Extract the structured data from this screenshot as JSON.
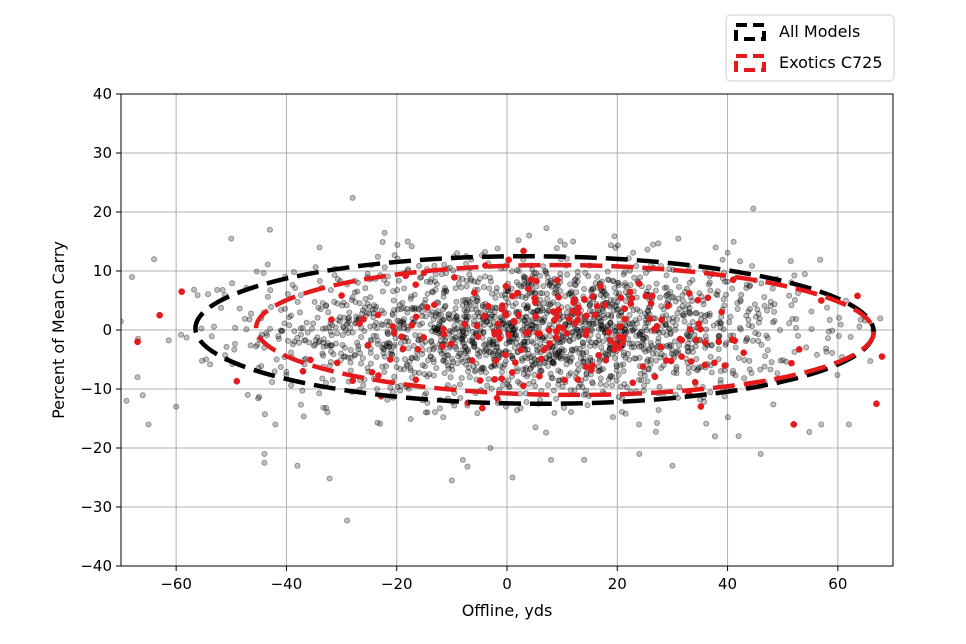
{
  "chart_data": {
    "type": "scatter",
    "xlabel": "Offline, yds",
    "ylabel": "Percent of Mean Carry",
    "xlim": [
      -70,
      70
    ],
    "ylim": [
      -40,
      40
    ],
    "xticks": [
      -60,
      -40,
      -20,
      0,
      20,
      40,
      60
    ],
    "yticks": [
      -40,
      -30,
      -20,
      -10,
      0,
      10,
      20,
      30,
      40
    ],
    "xtick_labels": [
      "−60",
      "−40",
      "−20",
      "0",
      "20",
      "40",
      "60"
    ],
    "ytick_labels": [
      "−40",
      "−30",
      "−20",
      "−10",
      "0",
      "10",
      "20",
      "30",
      "40"
    ],
    "grid": true,
    "legend_position": "top-right, outside plot",
    "series": [
      {
        "name": "All Models",
        "kind": "points",
        "color": "#000000",
        "opacity": 0.25,
        "approx_count": 2000,
        "distribution": {
          "x_mean": 5,
          "x_sd": 24,
          "y_mean": 0,
          "y_sd": 6
        },
        "outliers": [
          [
            -28,
            22.4
          ],
          [
            -29,
            -32.3
          ],
          [
            -44,
            -21
          ],
          [
            -44,
            -22.5
          ],
          [
            -38,
            -23
          ],
          [
            -42,
            -16
          ],
          [
            -47,
            -11
          ],
          [
            -60,
            -13
          ],
          [
            -10,
            -25.5
          ],
          [
            -8,
            -22
          ],
          [
            -3,
            -20
          ],
          [
            1,
            -25
          ],
          [
            8,
            -22
          ],
          [
            14,
            -22
          ],
          [
            24,
            -21
          ],
          [
            30,
            -23
          ],
          [
            42,
            -18
          ],
          [
            46,
            -21
          ],
          [
            57,
            -16
          ],
          [
            62,
            -16
          ],
          [
            4,
            16
          ],
          [
            12,
            15
          ],
          [
            -18,
            15
          ],
          [
            -34,
            14
          ],
          [
            -43,
            17
          ],
          [
            -50,
            15.5
          ],
          [
            -64,
            12
          ],
          [
            -68,
            9
          ],
          [
            -65,
            -16
          ],
          [
            -67,
            -8
          ],
          [
            -69,
            -12
          ]
        ]
      },
      {
        "name": "Exotics C725",
        "kind": "points",
        "color": "#e41a1c",
        "approx_count": 180,
        "distribution": {
          "x_mean": 10,
          "x_sd": 22,
          "y_mean": 0,
          "y_sd": 5
        },
        "outliers": [
          [
            -67,
            -2
          ],
          [
            -63,
            2.5
          ],
          [
            -59,
            6.5
          ],
          [
            -37,
            -7
          ],
          [
            67,
            -12.5
          ],
          [
            68,
            -4.5
          ],
          [
            57,
            5
          ],
          [
            52,
            -16
          ],
          [
            41,
            8.5
          ],
          [
            3,
            13.4
          ]
        ]
      },
      {
        "name": "All Models",
        "kind": "ellipse",
        "color": "#000000",
        "center": [
          5,
          0
        ],
        "semi_axes": [
          61.5,
          12.5
        ],
        "angle_deg": -0.3
      },
      {
        "name": "Exotics C725",
        "kind": "ellipse",
        "color": "#e41a1c",
        "center": [
          10.5,
          0
        ],
        "semi_axes": [
          56,
          11
        ],
        "angle_deg": -0.4
      }
    ]
  }
}
